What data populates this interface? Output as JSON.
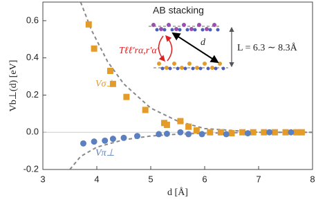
{
  "chart_data": {
    "type": "scatter",
    "xlabel": "d [Å]",
    "ylabel": "Vb⊥(d) [eV]",
    "xlim": [
      3,
      8
    ],
    "ylim": [
      -0.2,
      0.7
    ],
    "xticks": [
      3,
      4,
      5,
      6,
      7,
      8
    ],
    "yticks": [
      {
        "value": -0.2,
        "label": "-0.2"
      },
      {
        "value": 0,
        "label": "0.0"
      },
      0.2,
      0.4,
      0.6
    ],
    "zero_line": true,
    "series": [
      {
        "name": "Vσ⊥",
        "color": "#e39b2a",
        "marker": "square",
        "x": [
          3.85,
          3.95,
          4.25,
          4.3,
          4.55,
          4.9,
          5.25,
          5.3,
          5.55,
          5.7,
          5.85,
          6.1,
          6.3,
          6.5,
          6.7,
          6.9,
          7.1,
          7.3,
          7.5,
          7.7,
          7.8
        ],
        "values": [
          0.58,
          0.45,
          0.33,
          0.26,
          0.19,
          0.12,
          0.05,
          0.04,
          0.06,
          0.03,
          0.01,
          0.0,
          0.0,
          -0.005,
          0.0,
          0.0,
          0.0,
          0.0,
          0.0,
          0.0,
          0.0
        ]
      },
      {
        "name": "Vπ⊥",
        "color": "#5b7fbf",
        "marker": "circle",
        "x": [
          3.75,
          3.95,
          4.15,
          4.3,
          4.5,
          4.75,
          5.15,
          5.3,
          5.55,
          5.7,
          5.95,
          6.4,
          6.8,
          7.2,
          7.6
        ],
        "values": [
          -0.06,
          -0.05,
          -0.045,
          -0.035,
          -0.03,
          -0.02,
          -0.01,
          -0.008,
          0.0,
          -0.01,
          -0.01,
          -0.01,
          -0.005,
          0.0,
          0.0
        ]
      }
    ],
    "fits": [
      {
        "color": "#888888",
        "x": [
          3.7,
          3.9,
          4.2,
          4.5,
          5,
          5.5,
          6,
          7,
          8
        ],
        "values": [
          0.7,
          0.55,
          0.38,
          0.26,
          0.13,
          0.06,
          0.02,
          0.0,
          0.0
        ]
      },
      {
        "color": "#888888",
        "x": [
          3.5,
          3.7,
          4,
          4.5,
          5,
          5.5,
          6,
          7,
          8
        ],
        "values": [
          -0.2,
          -0.13,
          -0.08,
          -0.04,
          -0.02,
          -0.01,
          -0.005,
          0.0,
          0.0
        ]
      }
    ],
    "annotations": {
      "stacking": "AB  stacking",
      "d": "d",
      "L": "L = 6.3 ∼ 8.3Å",
      "hopping": "Tℓℓ′rα,r′α′"
    }
  }
}
